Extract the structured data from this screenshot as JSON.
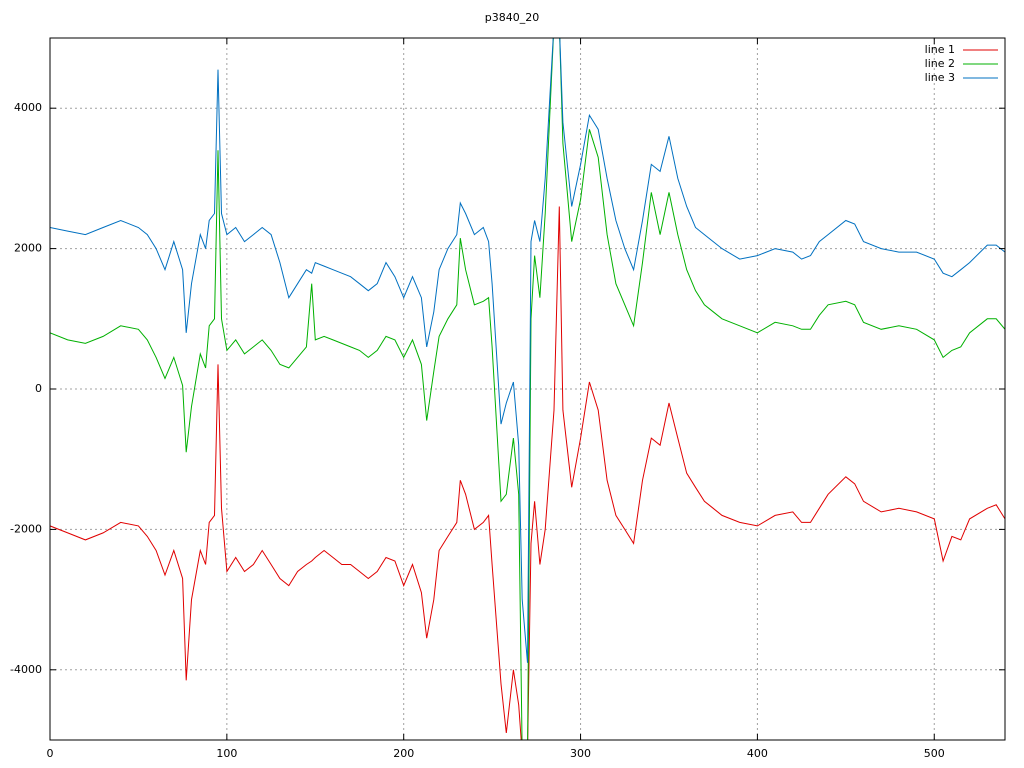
{
  "chart_data": {
    "type": "line",
    "title": "p3840_20",
    "x": [
      0,
      10,
      20,
      30,
      40,
      50,
      55,
      60,
      65,
      70,
      75,
      77,
      80,
      85,
      88,
      90,
      93,
      95,
      97,
      100,
      105,
      110,
      115,
      120,
      125,
      130,
      135,
      140,
      145,
      148,
      150,
      155,
      160,
      165,
      170,
      175,
      180,
      185,
      190,
      195,
      200,
      205,
      210,
      213,
      217,
      220,
      225,
      230,
      232,
      235,
      240,
      245,
      248,
      250,
      255,
      258,
      262,
      265,
      267,
      270,
      272,
      274,
      277,
      280,
      285,
      288,
      290,
      295,
      300,
      305,
      310,
      315,
      320,
      325,
      330,
      335,
      340,
      345,
      350,
      355,
      360,
      365,
      370,
      375,
      380,
      390,
      400,
      410,
      420,
      425,
      430,
      435,
      440,
      450,
      455,
      460,
      470,
      480,
      490,
      500,
      505,
      510,
      515,
      520,
      530,
      535,
      540
    ],
    "series": [
      {
        "name": "line 1",
        "color": "#e00000",
        "values": [
          -1950,
          -2050,
          -2150,
          -2050,
          -1900,
          -1950,
          -2100,
          -2300,
          -2650,
          -2300,
          -2700,
          -4150,
          -3000,
          -2300,
          -2500,
          -1900,
          -1800,
          350,
          -1700,
          -2600,
          -2400,
          -2600,
          -2500,
          -2300,
          -2500,
          -2700,
          -2800,
          -2600,
          -2500,
          -2450,
          -2400,
          -2300,
          -2400,
          -2500,
          -2500,
          -2600,
          -2700,
          -2600,
          -2400,
          -2450,
          -2800,
          -2500,
          -2900,
          -3550,
          -3000,
          -2300,
          -2100,
          -1900,
          -1300,
          -1500,
          -2000,
          -1900,
          -1800,
          -2500,
          -4200,
          -4900,
          -4000,
          -4500,
          -5200,
          -5200,
          -2200,
          -1600,
          -2500,
          -2000,
          -300,
          2600,
          -300,
          -1400,
          -700,
          100,
          -300,
          -1300,
          -1800,
          -2000,
          -2200,
          -1300,
          -700,
          -800,
          -200,
          -700,
          -1200,
          -1400,
          -1600,
          -1700,
          -1800,
          -1900,
          -1950,
          -1800,
          -1750,
          -1900,
          -1900,
          -1700,
          -1500,
          -1250,
          -1350,
          -1600,
          -1750,
          -1700,
          -1750,
          -1850,
          -2450,
          -2100,
          -2150,
          -1850,
          -1700,
          -1650,
          -1850
        ]
      },
      {
        "name": "line 2",
        "color": "#00b000",
        "values": [
          800,
          700,
          650,
          750,
          900,
          850,
          700,
          450,
          150,
          450,
          50,
          -900,
          -250,
          500,
          300,
          900,
          1000,
          3400,
          1000,
          550,
          700,
          500,
          600,
          700,
          550,
          350,
          300,
          450,
          600,
          1500,
          700,
          750,
          700,
          650,
          600,
          550,
          450,
          550,
          750,
          700,
          450,
          700,
          350,
          -450,
          250,
          750,
          1000,
          1200,
          2150,
          1700,
          1200,
          1250,
          1300,
          600,
          -1600,
          -1500,
          -700,
          -1500,
          -5200,
          -5200,
          1000,
          1900,
          1300,
          2500,
          5200,
          5200,
          3500,
          2100,
          2700,
          3700,
          3300,
          2200,
          1500,
          1200,
          900,
          1800,
          2800,
          2200,
          2800,
          2200,
          1700,
          1400,
          1200,
          1100,
          1000,
          900,
          800,
          950,
          900,
          850,
          850,
          1050,
          1200,
          1250,
          1200,
          950,
          850,
          900,
          850,
          700,
          450,
          550,
          600,
          800,
          1000,
          1000,
          850
        ]
      },
      {
        "name": "line 3",
        "color": "#0070c0",
        "values": [
          2300,
          2250,
          2200,
          2300,
          2400,
          2300,
          2200,
          2000,
          1700,
          2100,
          1700,
          800,
          1500,
          2200,
          2000,
          2400,
          2500,
          4550,
          2500,
          2200,
          2300,
          2100,
          2200,
          2300,
          2200,
          1800,
          1300,
          1500,
          1700,
          1650,
          1800,
          1750,
          1700,
          1650,
          1600,
          1500,
          1400,
          1500,
          1800,
          1600,
          1300,
          1600,
          1300,
          600,
          1100,
          1700,
          2000,
          2200,
          2650,
          2500,
          2200,
          2300,
          2100,
          1500,
          -500,
          -200,
          100,
          -800,
          -3000,
          -3900,
          2100,
          2400,
          2100,
          3000,
          5200,
          5200,
          3800,
          2600,
          3200,
          3900,
          3700,
          3000,
          2400,
          2000,
          1700,
          2400,
          3200,
          3100,
          3600,
          3000,
          2600,
          2300,
          2200,
          2100,
          2000,
          1850,
          1900,
          2000,
          1950,
          1850,
          1900,
          2100,
          2200,
          2400,
          2350,
          2100,
          2000,
          1950,
          1950,
          1850,
          1650,
          1600,
          1700,
          1800,
          2050,
          2050,
          1950
        ]
      }
    ],
    "xlim": [
      0,
      540
    ],
    "ylim": [
      -5000,
      5000
    ],
    "xticks": [
      0,
      100,
      200,
      300,
      400,
      500
    ],
    "yticks": [
      -4000,
      -2000,
      0,
      2000,
      4000
    ],
    "grid": true,
    "legend": "top-right"
  }
}
